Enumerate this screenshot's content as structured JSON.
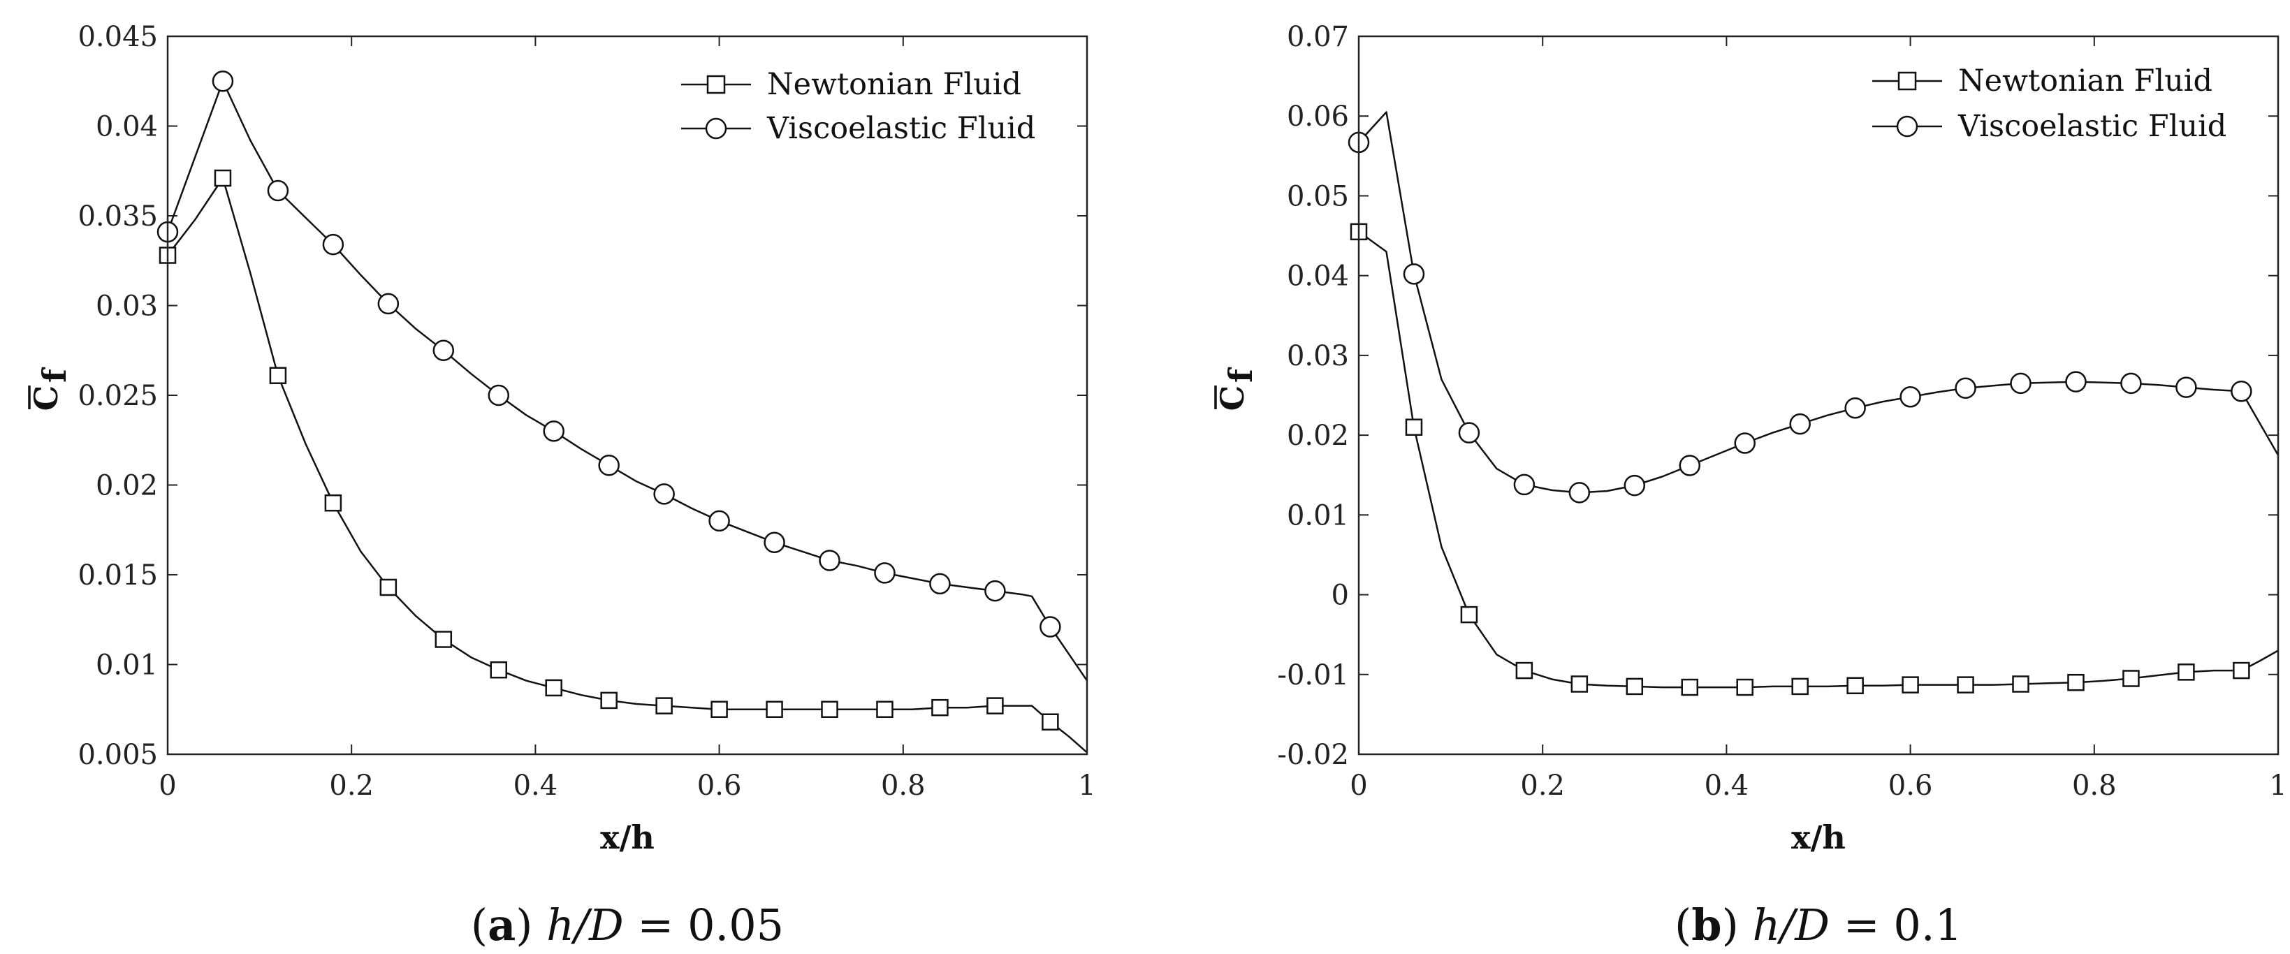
{
  "chart_data": [
    {
      "type": "line",
      "id": "a",
      "caption": {
        "label": "a",
        "h": "h",
        "slash": "/",
        "D": "D",
        "eq": " = ",
        "value": "0.05"
      },
      "xlabel": "x/h",
      "ylabel": {
        "main": "C",
        "sub": "f"
      },
      "xlim": [
        0,
        1
      ],
      "ylim": [
        0.005,
        0.045
      ],
      "xticks": [
        0,
        0.2,
        0.4,
        0.6,
        0.8,
        1
      ],
      "xtick_labels": [
        "0",
        "0.2",
        "0.4",
        "0.6",
        "0.8",
        "1"
      ],
      "yticks": [
        0.005,
        0.01,
        0.015,
        0.02,
        0.025,
        0.03,
        0.035,
        0.04,
        0.045
      ],
      "ytick_labels": [
        "0.005",
        "0.01",
        "0.015",
        "0.02",
        "0.025",
        "0.03",
        "0.035",
        "0.04",
        "0.045"
      ],
      "legend": "top-right",
      "grid": false,
      "series": [
        {
          "name": "Newtonian Fluid",
          "marker": "square",
          "curve_x": [
            0,
            0.03,
            0.06,
            0.09,
            0.12,
            0.15,
            0.18,
            0.21,
            0.24,
            0.27,
            0.3,
            0.33,
            0.36,
            0.39,
            0.42,
            0.45,
            0.48,
            0.51,
            0.54,
            0.57,
            0.6,
            0.63,
            0.66,
            0.69,
            0.72,
            0.75,
            0.78,
            0.81,
            0.84,
            0.87,
            0.9,
            0.93,
            0.94,
            0.96,
            0.98,
            1.0
          ],
          "curve_y": [
            0.0328,
            0.0348,
            0.0371,
            0.0318,
            0.0261,
            0.0223,
            0.019,
            0.0163,
            0.0143,
            0.0127,
            0.0114,
            0.0104,
            0.0097,
            0.0091,
            0.0087,
            0.0083,
            0.008,
            0.0078,
            0.0077,
            0.0076,
            0.0075,
            0.0075,
            0.0075,
            0.0075,
            0.0075,
            0.0075,
            0.0075,
            0.0075,
            0.0076,
            0.0076,
            0.0077,
            0.0077,
            0.0077,
            0.0068,
            0.006,
            0.0051
          ],
          "marker_x": [
            0,
            0.06,
            0.12,
            0.18,
            0.24,
            0.3,
            0.36,
            0.42,
            0.48,
            0.54,
            0.6,
            0.66,
            0.72,
            0.78,
            0.84,
            0.9,
            0.96
          ],
          "marker_y": [
            0.0328,
            0.0371,
            0.0261,
            0.019,
            0.0143,
            0.0114,
            0.0097,
            0.0087,
            0.008,
            0.0077,
            0.0075,
            0.0075,
            0.0075,
            0.0075,
            0.0076,
            0.0077,
            0.0068
          ]
        },
        {
          "name": "Viscoelastic Fluid",
          "marker": "circle",
          "curve_x": [
            0,
            0.03,
            0.06,
            0.09,
            0.12,
            0.15,
            0.18,
            0.21,
            0.24,
            0.27,
            0.3,
            0.33,
            0.36,
            0.39,
            0.42,
            0.45,
            0.48,
            0.51,
            0.54,
            0.57,
            0.6,
            0.63,
            0.66,
            0.69,
            0.72,
            0.75,
            0.78,
            0.81,
            0.84,
            0.87,
            0.9,
            0.93,
            0.94,
            0.96,
            0.98,
            1.0
          ],
          "curve_y": [
            0.0341,
            0.0383,
            0.0425,
            0.0392,
            0.0364,
            0.0349,
            0.0334,
            0.0317,
            0.0301,
            0.0287,
            0.0275,
            0.0262,
            0.025,
            0.0239,
            0.023,
            0.022,
            0.0211,
            0.0202,
            0.0195,
            0.0187,
            0.018,
            0.0174,
            0.0168,
            0.0163,
            0.0158,
            0.0155,
            0.0151,
            0.0148,
            0.0145,
            0.0143,
            0.0141,
            0.0139,
            0.0138,
            0.0121,
            0.0106,
            0.0091
          ],
          "marker_x": [
            0,
            0.06,
            0.12,
            0.18,
            0.24,
            0.3,
            0.36,
            0.42,
            0.48,
            0.54,
            0.6,
            0.66,
            0.72,
            0.78,
            0.84,
            0.9,
            0.96
          ],
          "marker_y": [
            0.0341,
            0.0425,
            0.0364,
            0.0334,
            0.0301,
            0.0275,
            0.025,
            0.023,
            0.0211,
            0.0195,
            0.018,
            0.0168,
            0.0158,
            0.0151,
            0.0145,
            0.0141,
            0.0121
          ]
        }
      ]
    },
    {
      "type": "line",
      "id": "b",
      "caption": {
        "label": "b",
        "h": "h",
        "slash": "/",
        "D": "D",
        "eq": " = ",
        "value": "0.1"
      },
      "xlabel": "x/h",
      "ylabel": {
        "main": "C",
        "sub": "f"
      },
      "xlim": [
        0,
        1
      ],
      "ylim": [
        -0.02,
        0.07
      ],
      "xticks": [
        0,
        0.2,
        0.4,
        0.6,
        0.8,
        1
      ],
      "xtick_labels": [
        "0",
        "0.2",
        "0.4",
        "0.6",
        "0.8",
        "1"
      ],
      "yticks": [
        -0.02,
        -0.01,
        0,
        0.01,
        0.02,
        0.03,
        0.04,
        0.05,
        0.06,
        0.07
      ],
      "ytick_labels": [
        "-0.02",
        "-0.01",
        "0",
        "0.01",
        "0.02",
        "0.03",
        "0.04",
        "0.05",
        "0.06",
        "0.07"
      ],
      "legend": "top-right",
      "grid": false,
      "series": [
        {
          "name": "Newtonian Fluid",
          "marker": "square",
          "curve_x": [
            0,
            0.03,
            0.06,
            0.09,
            0.12,
            0.15,
            0.18,
            0.21,
            0.24,
            0.27,
            0.3,
            0.33,
            0.36,
            0.39,
            0.42,
            0.45,
            0.48,
            0.51,
            0.54,
            0.57,
            0.6,
            0.63,
            0.66,
            0.69,
            0.72,
            0.75,
            0.78,
            0.81,
            0.84,
            0.87,
            0.9,
            0.93,
            0.96,
            0.98,
            1.0
          ],
          "curve_y": [
            0.0455,
            0.043,
            0.021,
            0.006,
            -0.0025,
            -0.0075,
            -0.0095,
            -0.0106,
            -0.0112,
            -0.0114,
            -0.0115,
            -0.0116,
            -0.0116,
            -0.0116,
            -0.0116,
            -0.0115,
            -0.0115,
            -0.0115,
            -0.0114,
            -0.0114,
            -0.0113,
            -0.0113,
            -0.0113,
            -0.0113,
            -0.0112,
            -0.0111,
            -0.011,
            -0.0108,
            -0.0105,
            -0.0101,
            -0.0097,
            -0.0095,
            -0.0095,
            -0.0083,
            -0.007
          ],
          "marker_x": [
            0,
            0.06,
            0.12,
            0.18,
            0.24,
            0.3,
            0.36,
            0.42,
            0.48,
            0.54,
            0.6,
            0.66,
            0.72,
            0.78,
            0.84,
            0.9,
            0.96
          ],
          "marker_y": [
            0.0455,
            0.021,
            -0.0025,
            -0.0095,
            -0.0112,
            -0.0115,
            -0.0116,
            -0.0116,
            -0.0115,
            -0.0114,
            -0.0113,
            -0.0113,
            -0.0112,
            -0.011,
            -0.0105,
            -0.0097,
            -0.0095
          ]
        },
        {
          "name": "Viscoelastic Fluid",
          "marker": "circle",
          "curve_x": [
            0,
            0.03,
            0.06,
            0.09,
            0.12,
            0.15,
            0.18,
            0.21,
            0.24,
            0.27,
            0.3,
            0.33,
            0.36,
            0.39,
            0.42,
            0.45,
            0.48,
            0.51,
            0.54,
            0.57,
            0.6,
            0.63,
            0.66,
            0.69,
            0.72,
            0.75,
            0.78,
            0.81,
            0.84,
            0.87,
            0.9,
            0.93,
            0.96,
            0.98,
            1.0
          ],
          "curve_y": [
            0.0567,
            0.0605,
            0.0402,
            0.027,
            0.0203,
            0.0158,
            0.0138,
            0.0131,
            0.0128,
            0.013,
            0.0137,
            0.0148,
            0.0162,
            0.0176,
            0.019,
            0.0203,
            0.0214,
            0.0225,
            0.0234,
            0.0242,
            0.0248,
            0.0254,
            0.0259,
            0.0262,
            0.0265,
            0.0266,
            0.0267,
            0.0266,
            0.0265,
            0.0263,
            0.026,
            0.0257,
            0.0255,
            0.0215,
            0.0175
          ],
          "marker_x": [
            0,
            0.06,
            0.12,
            0.18,
            0.24,
            0.3,
            0.36,
            0.42,
            0.48,
            0.54,
            0.6,
            0.66,
            0.72,
            0.78,
            0.84,
            0.9,
            0.96
          ],
          "marker_y": [
            0.0567,
            0.0402,
            0.0203,
            0.0138,
            0.0128,
            0.0137,
            0.0162,
            0.019,
            0.0214,
            0.0234,
            0.0248,
            0.0259,
            0.0265,
            0.0267,
            0.0265,
            0.026,
            0.0255
          ]
        }
      ]
    }
  ]
}
